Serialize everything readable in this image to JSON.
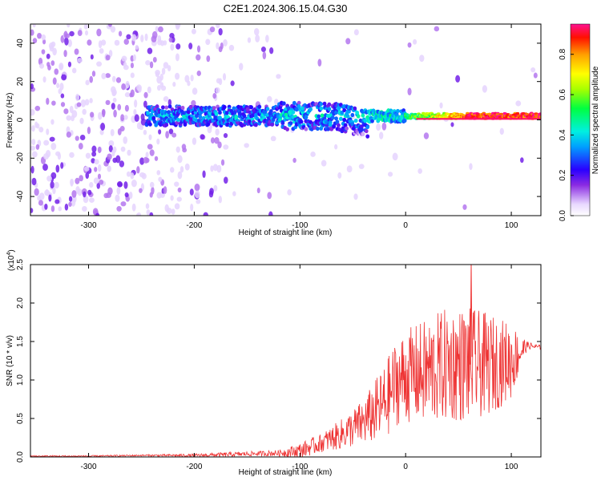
{
  "title": "C2E1.2024.306.15.04.G30",
  "colors": {
    "snr_line": "#ee3333",
    "spectrum_low": "#e9d6ff",
    "spectrum_mid": "#7a1ef0",
    "axis": "#000000"
  },
  "chart_data": [
    {
      "type": "heatmap",
      "name": "spectrogram",
      "xlabel": "Height of straight line (km)",
      "ylabel": "Frequency (Hz)",
      "xlim": [
        -355,
        128
      ],
      "ylim": [
        -50,
        50
      ],
      "xticks": [
        -300,
        -200,
        -100,
        0,
        100
      ],
      "xtick_labels": [
        "-300",
        "-200",
        "-100",
        "0",
        "100"
      ],
      "yticks": [
        -40,
        -20,
        0,
        20,
        40
      ],
      "ytick_labels": [
        "-40",
        "-20",
        "0",
        "20",
        "40"
      ],
      "colorbar": {
        "label": "Normalized spectral amplitude",
        "range": [
          0.0,
          0.95
        ],
        "ticks": [
          0.0,
          0.2,
          0.4,
          0.6,
          0.8
        ],
        "tick_labels": [
          "0.0",
          "0.2",
          "0.4",
          "0.6",
          "0.8"
        ]
      },
      "features": [
        {
          "name": "diffuse noise",
          "x_range": [
            -355,
            -170
          ],
          "freq_range": [
            -50,
            50
          ],
          "amplitude": 0.1
        },
        {
          "name": "signal band",
          "x_range": [
            -245,
            128
          ],
          "freq_center": 2,
          "freq_halfwidth_km_start": 5,
          "amplitude_peak": 0.9
        }
      ]
    },
    {
      "type": "line",
      "name": "snr",
      "xlabel": "Height of straight line (km)",
      "ylabel": "SNR (10 * v/v)",
      "multiplier": "(x10",
      "multiplier_exp": "4",
      "multiplier_close": ")",
      "xlim": [
        -355,
        128
      ],
      "ylim": [
        0,
        2.5
      ],
      "xticks": [
        -300,
        -200,
        -100,
        0,
        100
      ],
      "xtick_labels": [
        "-300",
        "-200",
        "-100",
        "0",
        "100"
      ],
      "yticks": [
        0,
        0.5,
        1.0,
        1.5,
        2.0,
        2.5
      ],
      "ytick_labels": [
        "0.0",
        "0.5",
        "1.0",
        "1.5",
        "2.0",
        "2.5"
      ],
      "series": [
        {
          "name": "SNR",
          "x": [
            -355,
            -300,
            -250,
            -200,
            -170,
            -150,
            -120,
            -100,
            -80,
            -60,
            -40,
            -20,
            -10,
            0,
            20,
            40,
            60,
            80,
            100,
            115,
            128
          ],
          "mean": [
            0.01,
            0.01,
            0.02,
            0.02,
            0.03,
            0.04,
            0.05,
            0.08,
            0.18,
            0.3,
            0.45,
            0.7,
            0.95,
            1.05,
            1.1,
            1.2,
            1.2,
            1.2,
            1.25,
            1.45,
            1.42
          ],
          "spread": [
            0.01,
            0.01,
            0.01,
            0.02,
            0.03,
            0.03,
            0.04,
            0.1,
            0.12,
            0.2,
            0.3,
            0.5,
            0.55,
            0.6,
            0.7,
            0.75,
            0.75,
            0.65,
            0.5,
            0.05,
            0.03
          ],
          "peak": {
            "x": 62,
            "y": 2.5
          }
        }
      ]
    }
  ]
}
